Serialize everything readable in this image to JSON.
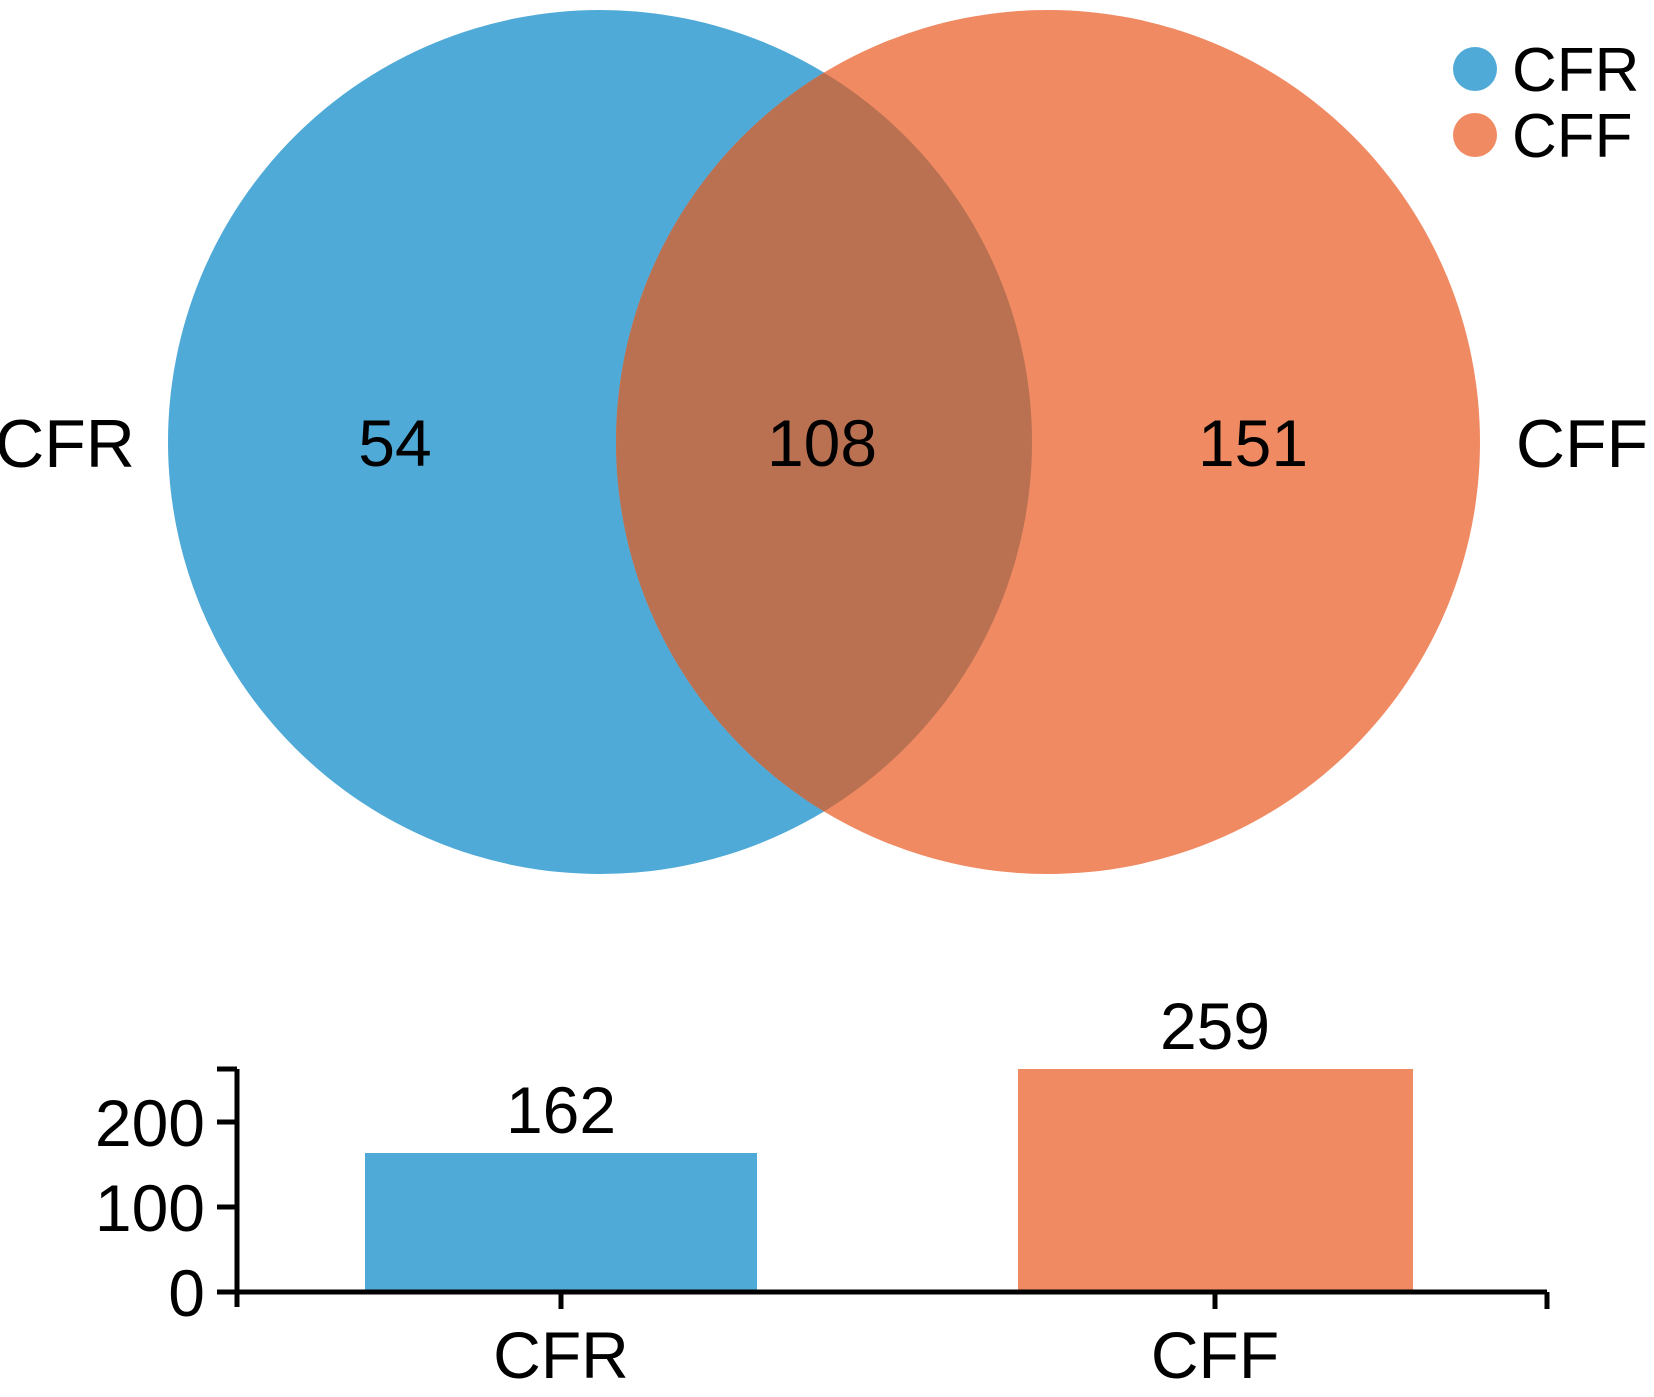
{
  "colors": {
    "cfr": "#4FAAD8",
    "cff": "#F08A62",
    "overlap": "#BA7152",
    "axis": "#000000",
    "text": "#000000"
  },
  "venn": {
    "left_label": "CFR",
    "right_label": "CFF"
  },
  "legend": {
    "items": [
      {
        "label": "CFR",
        "color": "#4FAAD8"
      },
      {
        "label": "CFF",
        "color": "#F08A62"
      }
    ]
  },
  "chart_data": [
    {
      "type": "venn",
      "title": "",
      "sets": [
        "CFR",
        "CFF"
      ],
      "regions": {
        "CFR_only": 54,
        "intersection": 108,
        "CFF_only": 151
      },
      "set_totals": {
        "CFR": 162,
        "CFF": 259
      },
      "legend": [
        "CFR",
        "CFF"
      ],
      "legend_position": "top-right",
      "colors": {
        "CFR": "#4FAAD8",
        "CFF": "#F08A62",
        "overlap": "#BA7152"
      }
    },
    {
      "type": "bar",
      "title": "",
      "categories": [
        "CFR",
        "CFF"
      ],
      "values": [
        162,
        259
      ],
      "data_labels": [
        "162",
        "259"
      ],
      "y_ticks": [
        "0",
        "100",
        "200"
      ],
      "xlabel": "",
      "ylabel": "",
      "ylim": [
        0,
        259
      ],
      "grid": false,
      "bar_colors": [
        "#4FAAD8",
        "#F08A62"
      ]
    }
  ]
}
